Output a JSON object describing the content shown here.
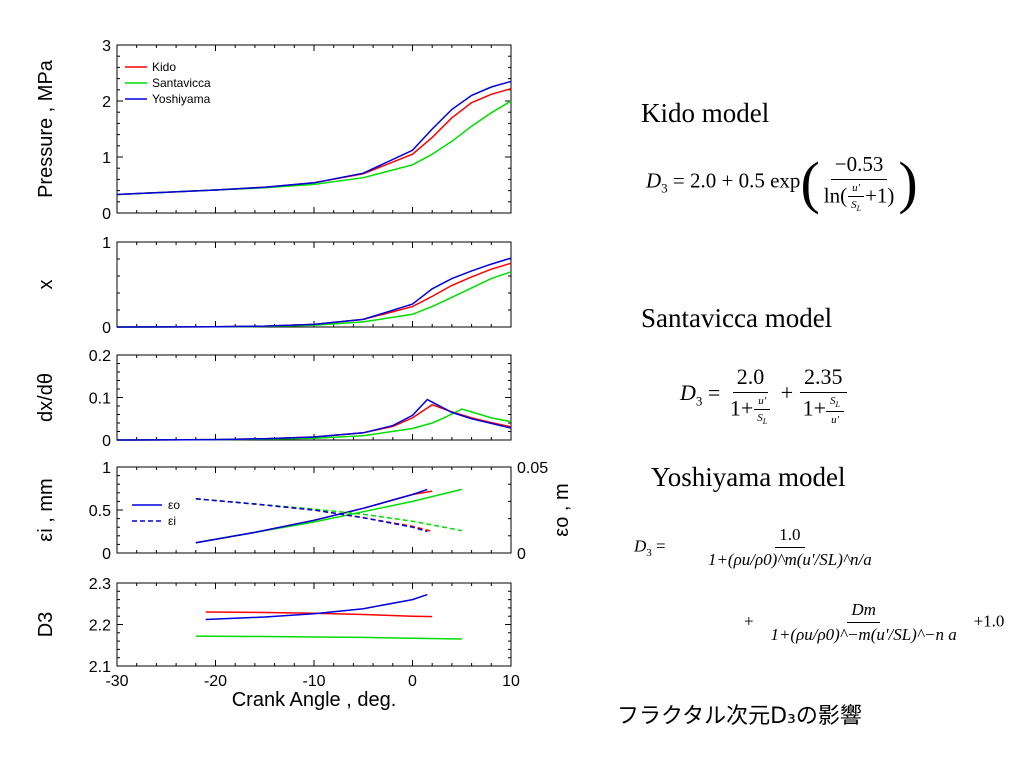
{
  "chart_data": [
    {
      "type": "line",
      "ylabel": "Pressure , MPa",
      "xlim": [
        -30,
        10
      ],
      "ylim": [
        0,
        3
      ],
      "yticks": [
        "0",
        "1",
        "2",
        "3"
      ],
      "legend": {
        "placement": "top-left",
        "entries": [
          "Kido",
          "Santavicca",
          "Yoshiyama"
        ]
      },
      "series": [
        {
          "name": "Kido",
          "color": "#ff0000",
          "x": [
            -30,
            -25,
            -20,
            -15,
            -10,
            -5,
            0,
            2,
            4,
            6,
            8,
            10
          ],
          "y": [
            0.33,
            0.37,
            0.41,
            0.46,
            0.54,
            0.7,
            1.05,
            1.35,
            1.7,
            1.97,
            2.12,
            2.22
          ]
        },
        {
          "name": "Santavicca",
          "color": "#00dd00",
          "x": [
            -30,
            -25,
            -20,
            -15,
            -10,
            -5,
            0,
            2,
            4,
            6,
            8,
            10
          ],
          "y": [
            0.33,
            0.37,
            0.41,
            0.45,
            0.51,
            0.63,
            0.86,
            1.05,
            1.28,
            1.55,
            1.79,
            2.0
          ]
        },
        {
          "name": "Yoshiyama",
          "color": "#0000dd",
          "x": [
            -30,
            -25,
            -20,
            -15,
            -10,
            -5,
            0,
            2,
            4,
            6,
            8,
            10
          ],
          "y": [
            0.33,
            0.37,
            0.41,
            0.46,
            0.54,
            0.71,
            1.12,
            1.5,
            1.85,
            2.1,
            2.25,
            2.35
          ]
        }
      ]
    },
    {
      "type": "line",
      "ylabel": "x",
      "xlim": [
        -30,
        10
      ],
      "ylim": [
        0,
        1
      ],
      "yticks": [
        "0",
        "1"
      ],
      "series": [
        {
          "name": "Kido",
          "color": "#ff0000",
          "x": [
            -30,
            -20,
            -15,
            -10,
            -5,
            0,
            2,
            4,
            6,
            8,
            10
          ],
          "y": [
            0,
            0.003,
            0.01,
            0.03,
            0.09,
            0.24,
            0.36,
            0.49,
            0.59,
            0.68,
            0.75
          ]
        },
        {
          "name": "Santavicca",
          "color": "#00dd00",
          "x": [
            -30,
            -20,
            -15,
            -10,
            -5,
            0,
            2,
            4,
            6,
            8,
            10
          ],
          "y": [
            0,
            0.002,
            0.007,
            0.02,
            0.06,
            0.15,
            0.24,
            0.35,
            0.46,
            0.57,
            0.65
          ]
        },
        {
          "name": "Yoshiyama",
          "color": "#0000dd",
          "x": [
            -30,
            -20,
            -15,
            -10,
            -5,
            0,
            2,
            4,
            6,
            8,
            10
          ],
          "y": [
            0,
            0.003,
            0.01,
            0.03,
            0.09,
            0.27,
            0.45,
            0.57,
            0.66,
            0.74,
            0.81
          ]
        }
      ]
    },
    {
      "type": "line",
      "ylabel": "dx/dθ",
      "xlim": [
        -30,
        10
      ],
      "ylim": [
        0,
        0.2
      ],
      "yticks": [
        "0",
        "0.1",
        "0.2"
      ],
      "series": [
        {
          "name": "Kido",
          "color": "#ff0000",
          "x": [
            -30,
            -20,
            -15,
            -10,
            -5,
            -2,
            0,
            2,
            4,
            6,
            8,
            10
          ],
          "y": [
            0,
            0.001,
            0.003,
            0.007,
            0.017,
            0.032,
            0.052,
            0.083,
            0.066,
            0.052,
            0.041,
            0.031
          ]
        },
        {
          "name": "Santavicca",
          "color": "#00dd00",
          "x": [
            -30,
            -20,
            -15,
            -10,
            -5,
            0,
            2,
            3,
            5,
            6,
            8,
            10
          ],
          "y": [
            0,
            0.001,
            0.002,
            0.004,
            0.01,
            0.027,
            0.04,
            0.05,
            0.073,
            0.066,
            0.052,
            0.043
          ]
        },
        {
          "name": "Yoshiyama",
          "color": "#0000dd",
          "x": [
            -30,
            -20,
            -15,
            -10,
            -5,
            -2,
            0,
            1.5,
            4,
            6,
            8,
            10
          ],
          "y": [
            0,
            0.001,
            0.003,
            0.007,
            0.017,
            0.034,
            0.058,
            0.095,
            0.065,
            0.05,
            0.039,
            0.028
          ]
        }
      ]
    },
    {
      "type": "line",
      "ylabel": "εi , mm",
      "y2label": "εo , m",
      "xlim": [
        -30,
        10
      ],
      "ylim": [
        0,
        1
      ],
      "y2lim": [
        0,
        0.05
      ],
      "yticks": [
        "0",
        "0.5",
        "1"
      ],
      "y2ticks": [
        "0",
        "0.05"
      ],
      "legend": {
        "placement": "left",
        "entries": [
          "εo",
          "εi"
        ]
      },
      "series": [
        {
          "name": "εo",
          "color": "#ff0000",
          "dash": false,
          "axis": "right",
          "x": [
            -22,
            -16,
            -10,
            -5,
            0,
            2
          ],
          "y": [
            0.006,
            0.012,
            0.019,
            0.026,
            0.034,
            0.036
          ]
        },
        {
          "name": "εo",
          "color": "#00dd00",
          "dash": false,
          "axis": "right",
          "x": [
            -22,
            -16,
            -10,
            -5,
            0,
            5
          ],
          "y": [
            0.006,
            0.012,
            0.018,
            0.024,
            0.03,
            0.037
          ]
        },
        {
          "name": "εo",
          "color": "#0000dd",
          "dash": false,
          "axis": "right",
          "x": [
            -22,
            -16,
            -10,
            -5,
            0,
            1.5
          ],
          "y": [
            0.006,
            0.012,
            0.019,
            0.026,
            0.034,
            0.037
          ]
        },
        {
          "name": "εi",
          "color": "#ff0000",
          "dash": true,
          "axis": "left",
          "x": [
            -22,
            -16,
            -10,
            -5,
            0,
            2
          ],
          "y": [
            0.63,
            0.57,
            0.5,
            0.41,
            0.31,
            0.25
          ]
        },
        {
          "name": "εi",
          "color": "#00dd00",
          "dash": true,
          "axis": "left",
          "x": [
            -22,
            -16,
            -10,
            -5,
            0,
            5
          ],
          "y": [
            0.63,
            0.57,
            0.51,
            0.45,
            0.37,
            0.26
          ]
        },
        {
          "name": "εi",
          "color": "#0000dd",
          "dash": true,
          "axis": "left",
          "x": [
            -22,
            -16,
            -10,
            -5,
            0,
            1.5
          ],
          "y": [
            0.63,
            0.57,
            0.5,
            0.41,
            0.3,
            0.25
          ]
        }
      ]
    },
    {
      "type": "line",
      "ylabel": "D3",
      "xlabel": "Crank Angle , deg.",
      "xlim": [
        -30,
        10
      ],
      "ylim": [
        2.1,
        2.3
      ],
      "yticks": [
        "2.1",
        "2.2",
        "2.3"
      ],
      "xticks": [
        "-30",
        "-20",
        "-10",
        "0",
        "10"
      ],
      "series": [
        {
          "name": "Kido",
          "color": "#ff0000",
          "x": [
            -21,
            -15,
            -10,
            -5,
            0,
            2
          ],
          "y": [
            2.23,
            2.229,
            2.227,
            2.224,
            2.22,
            2.219
          ]
        },
        {
          "name": "Santavicca",
          "color": "#00dd00",
          "x": [
            -22,
            -15,
            -10,
            -5,
            0,
            5
          ],
          "y": [
            2.172,
            2.171,
            2.17,
            2.169,
            2.167,
            2.165
          ]
        },
        {
          "name": "Yoshiyama",
          "color": "#0000dd",
          "x": [
            -21,
            -15,
            -10,
            -5,
            0,
            1.5
          ],
          "y": [
            2.212,
            2.218,
            2.226,
            2.238,
            2.26,
            2.272
          ]
        }
      ]
    }
  ],
  "models": {
    "kido_title": "Kido model",
    "santavicca_title": "Santavicca model",
    "yoshiyama_title": "Yoshiyama model"
  },
  "equations": {
    "kido": {
      "lhs": "D",
      "sub": "3",
      "const": " = 2.0 + 0.5 exp",
      "num": "−0.53",
      "ln": "ln",
      "u": "u'",
      "sl": "S",
      "slsub": "L",
      "plus1": "+1"
    },
    "santavicca": {
      "lhs": "D",
      "sub": "3",
      "eq": " = ",
      "n1": "2.0",
      "n2": "2.35",
      "one": "1+",
      "u": "u'",
      "sl": "S",
      "slsub": "L",
      "plus": " + "
    },
    "yoshiyama": {
      "lhs": "D",
      "sub": "3",
      "eq": " = ",
      "n1": "1.0",
      "den1": "1+(ρu/ρ0)^m(u'/SL)^n/a",
      "plus": "+",
      "n2": "Dm",
      "den2": "1+(ρu/ρ0)^−m(u'/SL)^−n a",
      "tail": "+1.0"
    }
  },
  "caption": "フラクタル次元D₃の影響"
}
